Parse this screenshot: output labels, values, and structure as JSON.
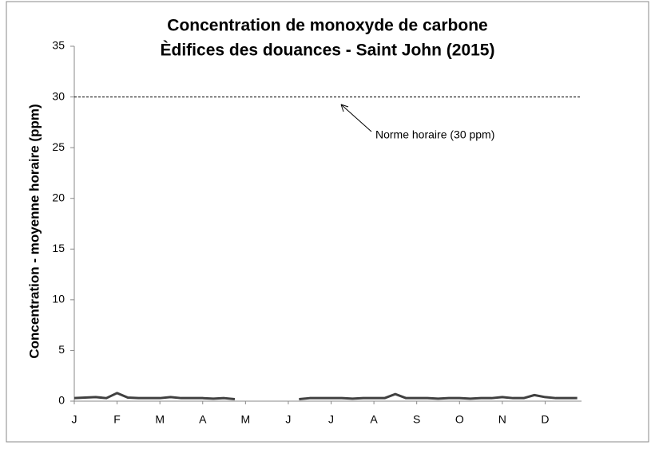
{
  "chart_data": {
    "type": "line",
    "title": "Concentration de monoxyde de carbone",
    "subtitle": "Èdifices des douances - Saint John (2015)",
    "y_label": "Concentration - moyenne horaire (ppm)",
    "x": [
      0,
      0.25,
      0.5,
      0.75,
      1,
      1.25,
      1.5,
      1.75,
      2,
      2.25,
      2.5,
      2.75,
      3,
      3.25,
      3.5,
      3.75,
      4,
      4.25,
      4.5,
      4.75,
      5,
      5.25,
      5.5,
      5.75,
      6,
      6.25,
      6.5,
      6.75,
      7,
      7.25,
      7.5,
      7.75,
      8,
      8.25,
      8.5,
      8.75,
      9,
      9.25,
      9.5,
      9.75,
      10,
      10.25,
      10.5,
      10.75,
      11,
      11.25,
      11.5,
      11.75
    ],
    "series": [
      {
        "color": "#404040",
        "values": [
          0.3,
          0.35,
          0.4,
          0.3,
          0.8,
          0.35,
          0.3,
          0.3,
          0.3,
          0.4,
          0.3,
          0.3,
          0.3,
          0.25,
          0.3,
          0.2,
          null,
          null,
          null,
          null,
          null,
          0.2,
          0.3,
          0.3,
          0.3,
          0.3,
          0.25,
          0.3,
          0.3,
          0.3,
          0.7,
          0.3,
          0.3,
          0.3,
          0.25,
          0.3,
          0.3,
          0.25,
          0.3,
          0.3,
          0.4,
          0.3,
          0.3,
          0.6,
          0.4,
          0.3,
          0.3,
          0.3
        ]
      }
    ],
    "xlim": [
      0,
      11.85
    ],
    "xticks": [
      {
        "value": 0,
        "label": "J"
      },
      {
        "value": 1,
        "label": "F"
      },
      {
        "value": 2,
        "label": "M"
      },
      {
        "value": 3,
        "label": "A"
      },
      {
        "value": 4,
        "label": "M"
      },
      {
        "value": 5,
        "label": "J"
      },
      {
        "value": 6,
        "label": "J"
      },
      {
        "value": 7,
        "label": "A"
      },
      {
        "value": 8,
        "label": "S"
      },
      {
        "value": 9,
        "label": "O"
      },
      {
        "value": 10,
        "label": "N"
      },
      {
        "value": 11,
        "label": "D"
      }
    ],
    "ylim": [
      0,
      35
    ],
    "yticks": [
      0,
      5,
      10,
      15,
      20,
      25,
      30,
      35
    ],
    "reference": {
      "value": 30,
      "label": "Norme horaire (30 ppm)"
    }
  }
}
